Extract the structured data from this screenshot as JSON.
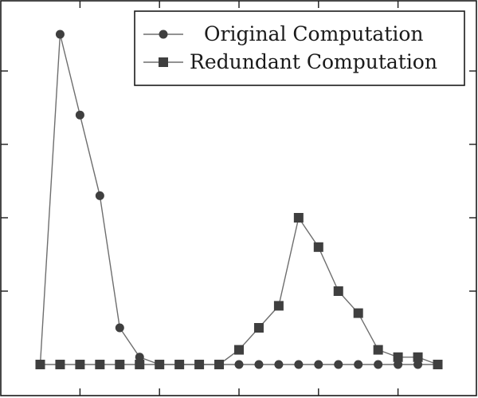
{
  "chart_data": {
    "type": "line",
    "title": "",
    "xlabel": "",
    "ylabel": "",
    "grid": false,
    "legend_position": "top-right",
    "x": [
      1,
      2,
      3,
      4,
      5,
      6,
      7,
      8,
      9,
      10,
      11,
      12,
      13,
      14,
      15,
      16,
      17,
      18,
      19,
      20,
      21
    ],
    "xlim": [
      0,
      22
    ],
    "ylim": [
      0,
      45
    ],
    "xticks": [
      3,
      7,
      11,
      15,
      19
    ],
    "yticks": [
      10,
      20,
      30,
      40
    ],
    "series": [
      {
        "name": "Original Computation",
        "marker": "circle",
        "color": "#3f3f3f",
        "values": [
          0,
          45,
          34,
          23,
          5,
          1,
          0,
          0,
          0,
          0,
          0,
          0,
          0,
          0,
          0,
          0,
          0,
          0,
          0,
          0,
          0
        ]
      },
      {
        "name": "Redundant Computation",
        "marker": "square",
        "color": "#3f3f3f",
        "values": [
          0,
          0,
          0,
          0,
          0,
          0,
          0,
          0,
          0,
          0,
          2,
          5,
          8,
          20,
          16,
          10,
          7,
          2,
          1,
          1,
          0
        ]
      }
    ]
  }
}
